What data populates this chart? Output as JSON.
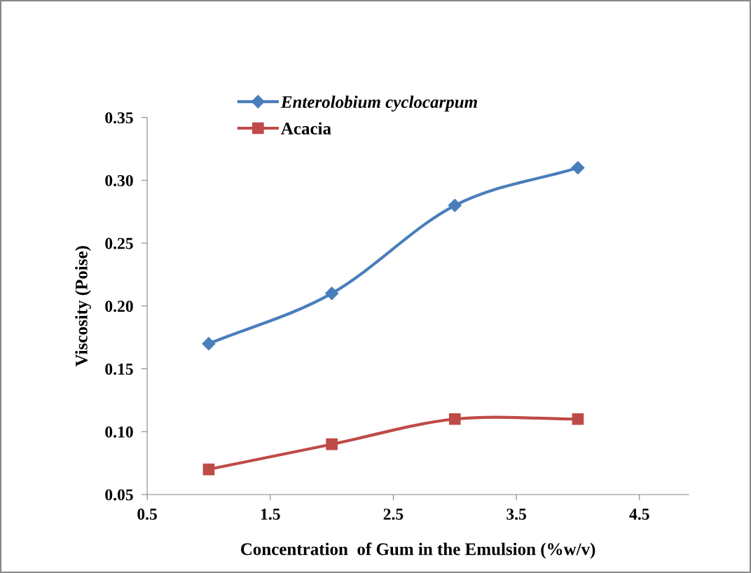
{
  "chart_data": {
    "type": "line",
    "xlabel": "Concentration  of Gum in the Emulsion (%w/v)",
    "ylabel": "Viscosity (Poise)",
    "x": [
      1,
      2,
      3,
      4
    ],
    "series": [
      {
        "name": "Enterolobium cyclocarpum",
        "color": "#4a7ebb",
        "marker": "diamond",
        "values": [
          0.17,
          0.21,
          0.28,
          0.31
        ]
      },
      {
        "name": "Acacia",
        "color": "#be4b48",
        "marker": "square",
        "values": [
          0.07,
          0.09,
          0.11,
          0.11
        ]
      }
    ],
    "xlim": [
      0.5,
      4.9
    ],
    "xticks": [
      {
        "value": 0.5,
        "label": "0.5"
      },
      {
        "value": 1.5,
        "label": "1.5"
      },
      {
        "value": 2.5,
        "label": "2.5"
      },
      {
        "value": 3.5,
        "label": "3.5"
      },
      {
        "value": 4.5,
        "label": "4.5"
      }
    ],
    "ylim": [
      0.05,
      0.35
    ],
    "yticks": [
      {
        "value": 0.05,
        "label": "0.05"
      },
      {
        "value": 0.1,
        "label": "0.10"
      },
      {
        "value": 0.15,
        "label": "0.15"
      },
      {
        "value": 0.2,
        "label": "0.20"
      },
      {
        "value": 0.25,
        "label": "0.25"
      },
      {
        "value": 0.3,
        "label": "0.30"
      },
      {
        "value": 0.35,
        "label": "0.35"
      }
    ],
    "grid": false,
    "legend": "top left",
    "line_style": "solid"
  }
}
